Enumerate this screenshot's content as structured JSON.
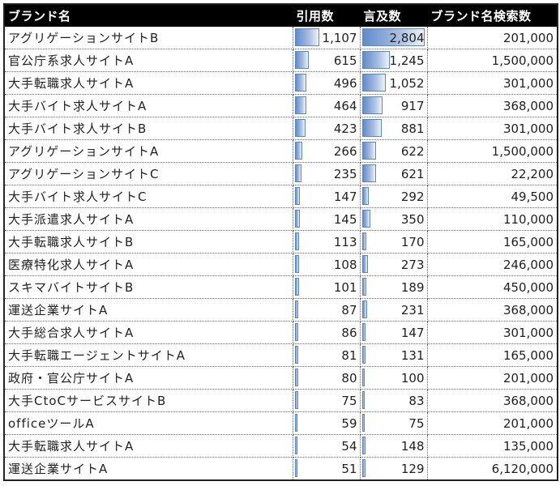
{
  "table": {
    "headers": [
      "ブランド名",
      "引用数",
      "言及数",
      "ブランド名検索数"
    ],
    "bar_color": "#5b86c6",
    "header_bg": "#000000",
    "rows": [
      {
        "name": "アグリゲーションサイトB",
        "citations": "1,107",
        "mentions": "2,804",
        "searches": "201,000"
      },
      {
        "name": "官公庁系求人サイトA",
        "citations": "615",
        "mentions": "1,245",
        "searches": "1,500,000"
      },
      {
        "name": "大手転職求人サイトA",
        "citations": "496",
        "mentions": "1,052",
        "searches": "301,000"
      },
      {
        "name": "大手バイト求人サイトA",
        "citations": "464",
        "mentions": "917",
        "searches": "368,000"
      },
      {
        "name": "大手バイト求人サイトB",
        "citations": "423",
        "mentions": "881",
        "searches": "301,000"
      },
      {
        "name": "アグリゲーションサイトA",
        "citations": "266",
        "mentions": "622",
        "searches": "1,500,000"
      },
      {
        "name": "アグリゲーションサイトC",
        "citations": "235",
        "mentions": "621",
        "searches": "22,200"
      },
      {
        "name": "大手バイト求人サイトC",
        "citations": "147",
        "mentions": "292",
        "searches": "49,500"
      },
      {
        "name": "大手派遣求人サイトA",
        "citations": "145",
        "mentions": "350",
        "searches": "110,000"
      },
      {
        "name": "大手転職求人サイトB",
        "citations": "113",
        "mentions": "170",
        "searches": "165,000"
      },
      {
        "name": "医療特化求人サイトA",
        "citations": "108",
        "mentions": "273",
        "searches": "246,000"
      },
      {
        "name": "スキマバイトサイトB",
        "citations": "101",
        "mentions": "189",
        "searches": "450,000"
      },
      {
        "name": "運送企業サイトA",
        "citations": "87",
        "mentions": "231",
        "searches": "368,000"
      },
      {
        "name": "大手総合求人サイトA",
        "citations": "86",
        "mentions": "147",
        "searches": "301,000"
      },
      {
        "name": "大手転職エージェントサイトA",
        "citations": "81",
        "mentions": "131",
        "searches": "165,000"
      },
      {
        "name": "政府・官公庁サイトA",
        "citations": "80",
        "mentions": "100",
        "searches": "201,000"
      },
      {
        "name": "大手CtoCサービスサイトB",
        "citations": "75",
        "mentions": "83",
        "searches": "368,000"
      },
      {
        "name": "officeツールA",
        "citations": "59",
        "mentions": "75",
        "searches": "201,000"
      },
      {
        "name": "大手転職求人サイトA",
        "citations": "54",
        "mentions": "148",
        "searches": "135,000"
      },
      {
        "name": "運送企業サイトA",
        "citations": "51",
        "mentions": "129",
        "searches": "6,120,000"
      }
    ]
  }
}
